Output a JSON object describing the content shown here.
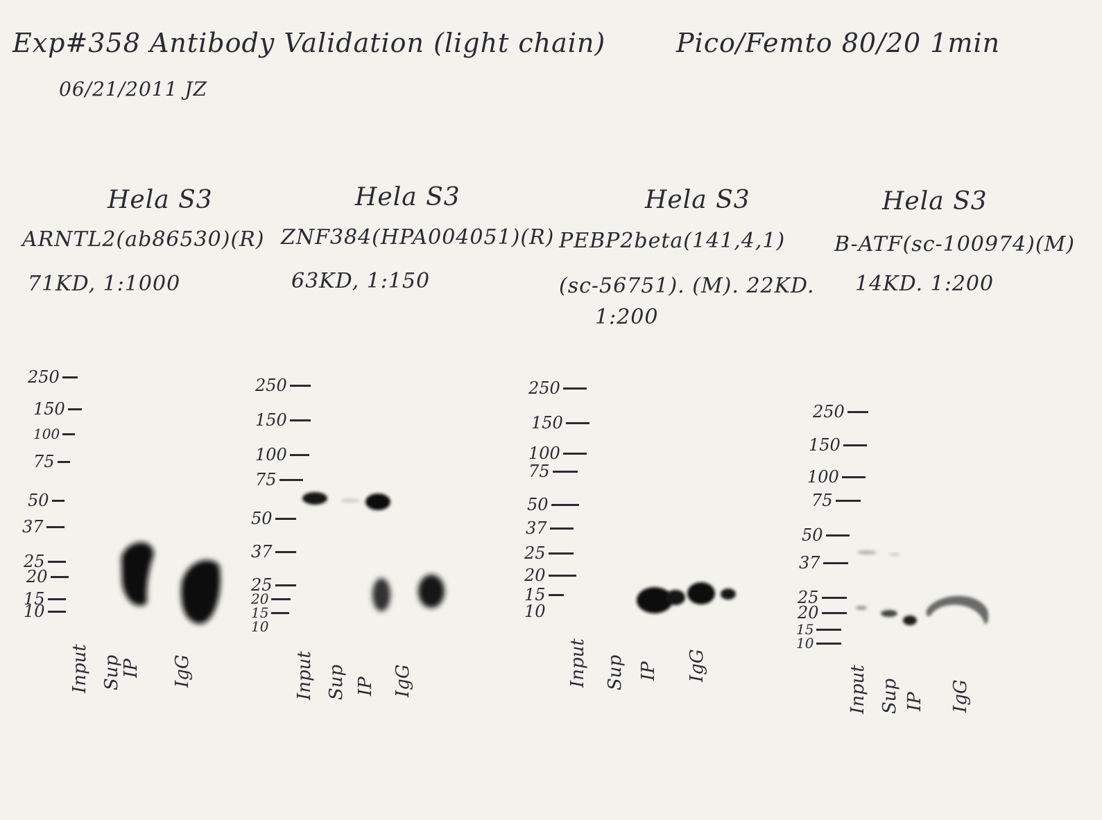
{
  "header": {
    "experiment": "Exp#358 Antibody Validation (light chain)",
    "date_initials": "06/21/2011 JZ",
    "detection": "Pico/Femto 80/20 1min"
  },
  "panels": [
    {
      "cell_line": "Hela S3",
      "antibody": "ARNTL2(ab86530)(R)",
      "conditions": "71KD, 1:1000",
      "markers": [
        "250",
        "150",
        "100",
        "75",
        "50",
        "37",
        "25",
        "20",
        "15",
        "10"
      ],
      "lanes": [
        "Input",
        "Sup",
        "IP",
        "IgG"
      ]
    },
    {
      "cell_line": "Hela S3",
      "antibody": "ZNF384(HPA004051)(R)",
      "conditions": "63KD, 1:150",
      "markers": [
        "250",
        "150",
        "100",
        "75",
        "50",
        "37",
        "25",
        "20",
        "15",
        "10"
      ],
      "lanes": [
        "Input",
        "Sup",
        "IP",
        "IgG"
      ]
    },
    {
      "cell_line": "Hela S3",
      "antibody": "PEBP2beta(141,4,1)",
      "conditions": "(sc-56751). (M). 22KD.",
      "dilution": "1:200",
      "markers": [
        "250",
        "150",
        "100",
        "75",
        "50",
        "37",
        "25",
        "20",
        "15",
        "10"
      ],
      "lanes": [
        "Input",
        "Sup",
        "IP",
        "IgG"
      ]
    },
    {
      "cell_line": "Hela S3",
      "antibody": "B-ATF(sc-100974)(M)",
      "conditions": "14KD. 1:200",
      "markers": [
        "250",
        "150",
        "100",
        "75",
        "50",
        "37",
        "25",
        "20",
        "15",
        "10"
      ],
      "lanes": [
        "Input",
        "Sup",
        "IP",
        "IgG"
      ]
    }
  ]
}
